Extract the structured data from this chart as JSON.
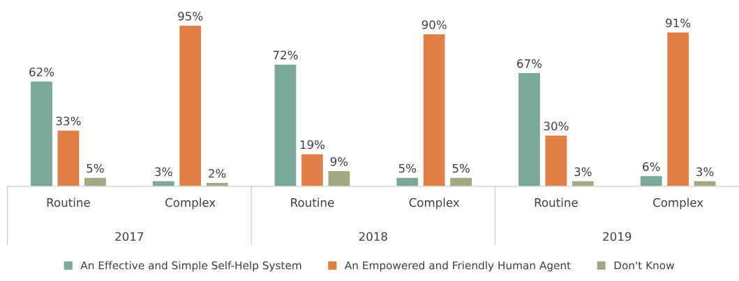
{
  "chart_data": {
    "type": "bar",
    "categories": [
      "Routine",
      "Complex",
      "Routine",
      "Complex",
      "Routine",
      "Complex"
    ],
    "series": [
      {
        "name": "An Effective and Simple Self-Help System",
        "color": "#7aa89b",
        "values": [
          62,
          3,
          72,
          5,
          67,
          6
        ],
        "value_labels": [
          "62%",
          "3%",
          "72%",
          "5%",
          "67%",
          "6%"
        ]
      },
      {
        "name": "An Empowered and Friendly Human Agent",
        "color": "#e08046",
        "values": [
          33,
          95,
          19,
          90,
          30,
          91
        ],
        "value_labels": [
          "33%",
          "95%",
          "19%",
          "90%",
          "30%",
          "91%"
        ]
      },
      {
        "name": "Don't Know",
        "color": "#a3a983",
        "values": [
          5,
          2,
          9,
          5,
          3,
          3
        ],
        "value_labels": [
          "5%",
          "2%",
          "9%",
          "5%",
          "3%",
          "3%"
        ]
      }
    ],
    "annotations": [
      "2017",
      "2018",
      "2019"
    ],
    "tick_labels": "x",
    "grid": false,
    "legend": "bottom"
  }
}
